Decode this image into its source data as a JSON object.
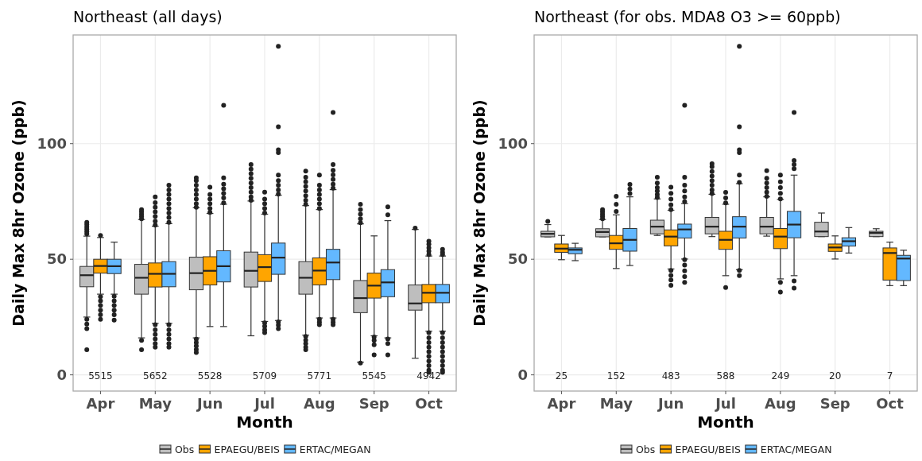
{
  "chart_data": [
    {
      "type": "box",
      "title": "Northeast (all days)",
      "xlabel": "Month",
      "ylabel": "Daily Max 8hr Ozone (ppb)",
      "categories": [
        "Apr",
        "May",
        "Jun",
        "Jul",
        "Aug",
        "Sep",
        "Oct"
      ],
      "ylim": [
        -7,
        147
      ],
      "yticks": [
        0,
        50,
        100
      ],
      "grid": true,
      "legend": "bottom",
      "annotations": [
        "5515",
        "5652",
        "5528",
        "5709",
        "5771",
        "5545",
        "4942"
      ],
      "series": [
        {
          "name": "Obs",
          "color": "#bebebe",
          "boxes": [
            {
              "low": 25,
              "q1": 38.1,
              "median": 43.1,
              "q3": 46.9,
              "high": 60,
              "outliers": [
                61,
                62,
                63,
                64,
                65,
                66,
                24,
                22,
                20,
                10.9
              ]
            },
            {
              "low": 16,
              "q1": 34.9,
              "median": 42,
              "q3": 47.8,
              "high": 67.2,
              "outliers": [
                67.5,
                68.5,
                69.5,
                70.5,
                71.5,
                14.9,
                10.9
              ]
            },
            {
              "low": 16,
              "q1": 36.8,
              "median": 44,
              "q3": 50.9,
              "high": 72.3,
              "outliers": [
                72.5,
                74,
                76,
                78,
                80,
                82,
                84,
                85.2,
                15.4,
                14,
                12.5,
                11,
                9.7
              ]
            },
            {
              "low": 16.9,
              "q1": 38,
              "median": 45,
              "q3": 53.1,
              "high": 75.2,
              "outliers": [
                75.5,
                77,
                79,
                81,
                83,
                85,
                87,
                89,
                91
              ]
            },
            {
              "low": 17.2,
              "q1": 34.9,
              "median": 42,
              "q3": 49,
              "high": 73.2,
              "outliers": [
                73.8,
                75.5,
                77.5,
                79.5,
                81.5,
                83.5,
                85.5,
                88.1,
                16.6,
                15,
                13.5,
                12,
                10.9
              ]
            },
            {
              "low": 5.5,
              "q1": 26.9,
              "median": 33.2,
              "q3": 40.8,
              "high": 65.3,
              "outliers": [
                65.8,
                67.5,
                69.5,
                71.5,
                73.8,
                5.1
              ]
            },
            {
              "low": 7.2,
              "q1": 28,
              "median": 30.9,
              "q3": 38.9,
              "high": 62.9,
              "outliers": [
                63.5
              ]
            }
          ]
        },
        {
          "name": "EPAEGU/BEIS",
          "color": "#ffa500",
          "boxes": [
            {
              "low": 34.9,
              "q1": 44,
              "median": 47.1,
              "q3": 50,
              "high": 59.4,
              "outliers": [
                60.3,
                33.8,
                32,
                30,
                28,
                26,
                24
              ]
            },
            {
              "low": 22.3,
              "q1": 38,
              "median": 43.7,
              "q3": 48.4,
              "high": 64.3,
              "outliers": [
                64.8,
                66.5,
                68.5,
                70.5,
                72.5,
                74.5,
                77,
                21.7,
                19.5,
                17.5,
                15.5,
                13.5,
                12
              ]
            },
            {
              "low": 20.9,
              "q1": 38.9,
              "median": 45,
              "q3": 51.1,
              "high": 69.8,
              "outliers": [
                70.3,
                72,
                74,
                76,
                78,
                81.2
              ]
            },
            {
              "low": 23.1,
              "q1": 40.4,
              "median": 46.6,
              "q3": 52,
              "high": 69.5,
              "outliers": [
                70,
                72,
                74,
                76,
                79,
                22.5,
                21,
                19.5,
                18.3
              ]
            },
            {
              "low": 24.6,
              "q1": 38.9,
              "median": 45.1,
              "q3": 50.6,
              "high": 71.5,
              "outliers": [
                72,
                74,
                76,
                78,
                80,
                82,
                86.4,
                24,
                22.8,
                21.7
              ]
            },
            {
              "low": 16.9,
              "q1": 33.2,
              "median": 38.6,
              "q3": 44,
              "high": 60.1,
              "outliers": [
                16.4,
                14.9,
                13,
                8.6
              ]
            },
            {
              "low": 18.9,
              "q1": 31.2,
              "median": 35.5,
              "q3": 39.1,
              "high": 51.4,
              "outliers": [
                52,
                53.5,
                55,
                56.5,
                57.8,
                18.3,
                16,
                14,
                12,
                10,
                8,
                6,
                4,
                2,
                1.1
              ]
            }
          ]
        },
        {
          "name": "ERTAC/MEGAN",
          "color": "#63b8ff",
          "boxes": [
            {
              "low": 34.9,
              "q1": 43.8,
              "median": 47,
              "q3": 50,
              "high": 57.4,
              "outliers": [
                34,
                32,
                30,
                28,
                26,
                23.7
              ]
            },
            {
              "low": 22.3,
              "q1": 38.1,
              "median": 43.7,
              "q3": 49,
              "high": 65.4,
              "outliers": [
                66,
                68,
                70,
                72,
                74,
                76,
                78,
                80,
                82,
                21.7,
                19.5,
                17.5,
                15.5,
                13.5,
                12
              ]
            },
            {
              "low": 20.9,
              "q1": 40.2,
              "median": 47,
              "q3": 53.7,
              "high": 73.8,
              "outliers": [
                74.4,
                76.5,
                78.5,
                80.5,
                82.5,
                85.2,
                116.6
              ]
            },
            {
              "low": 23.5,
              "q1": 43.5,
              "median": 50.7,
              "q3": 57,
              "high": 77.7,
              "outliers": [
                78.2,
                80,
                82,
                84,
                86.4,
                96.1,
                97.3,
                107.3,
                142.1,
                22.9,
                21.5,
                20
              ]
            },
            {
              "low": 24.6,
              "q1": 41.2,
              "median": 48.6,
              "q3": 54.3,
              "high": 80.1,
              "outliers": [
                80.7,
                82.5,
                84.5,
                86.5,
                88.5,
                91,
                113.5,
                24,
                22.8,
                21.7
              ]
            },
            {
              "low": 16,
              "q1": 33.8,
              "median": 40,
              "q3": 45.5,
              "high": 66.7,
              "outliers": [
                69.2,
                72.7,
                15.5,
                13.5,
                8.6
              ]
            },
            {
              "low": 18.9,
              "q1": 31.2,
              "median": 35.5,
              "q3": 39.1,
              "high": 51.4,
              "outliers": [
                52,
                53,
                54.3,
                18.3,
                16,
                14,
                12,
                10,
                8,
                6,
                4,
                2,
                1.1
              ]
            }
          ]
        }
      ]
    },
    {
      "type": "box",
      "title": "Northeast (for obs. MDA8 O3 >= 60ppb)",
      "xlabel": "Month",
      "ylabel": "Daily Max 8hr Ozone (ppb)",
      "categories": [
        "Apr",
        "May",
        "Jun",
        "Jul",
        "Aug",
        "Sep",
        "Oct"
      ],
      "ylim": [
        -7,
        147
      ],
      "yticks": [
        0,
        50,
        100
      ],
      "grid": true,
      "legend": "bottom",
      "annotations": [
        "25",
        "152",
        "483",
        "588",
        "249",
        "20",
        "7"
      ],
      "series": [
        {
          "name": "Obs",
          "color": "#bebebe",
          "boxes": [
            {
              "low": 59.7,
              "q1": 59.7,
              "median": 61,
              "q3": 62.1,
              "high": 65,
              "outliers": [
                66.4
              ]
            },
            {
              "low": 59.7,
              "q1": 59.7,
              "median": 61.8,
              "q3": 63.2,
              "high": 67.2,
              "outliers": [
                67.5,
                68.5,
                69.5,
                70.5,
                71.5
              ]
            },
            {
              "low": 60.3,
              "q1": 61,
              "median": 64.1,
              "q3": 66.9,
              "high": 76.1,
              "outliers": [
                76.7,
                78,
                79.5,
                81,
                83,
                85.5
              ]
            },
            {
              "low": 59.8,
              "q1": 61,
              "median": 64.1,
              "q3": 68.1,
              "high": 78.1,
              "outliers": [
                78.4,
                80,
                82,
                84,
                86,
                88,
                90,
                91.3
              ]
            },
            {
              "low": 60,
              "q1": 61,
              "median": 64.1,
              "q3": 68.1,
              "high": 77,
              "outliers": [
                77.2,
                79,
                81,
                83,
                85,
                88.3
              ]
            },
            {
              "low": 59.8,
              "q1": 59.8,
              "median": 62,
              "q3": 66,
              "high": 70
            },
            {
              "low": 59.8,
              "q1": 59.8,
              "median": 61.4,
              "q3": 62.1,
              "high": 63.2
            }
          ]
        },
        {
          "name": "EPAEGU/BEIS",
          "color": "#ffa500",
          "boxes": [
            {
              "low": 49.8,
              "q1": 53,
              "median": 54.6,
              "q3": 56.6,
              "high": 60.3
            },
            {
              "low": 46,
              "q1": 54.3,
              "median": 56.9,
              "q3": 60.3,
              "high": 69.2,
              "outliers": [
                70.7,
                73.8,
                77.2
              ]
            },
            {
              "low": 45.8,
              "q1": 55.8,
              "median": 59.8,
              "q3": 62.7,
              "high": 71.2,
              "outliers": [
                71.5,
                73.5,
                76,
                78.5,
                81.2,
                45.2,
                43,
                41,
                38.7
              ]
            },
            {
              "low": 42.9,
              "q1": 54.3,
              "median": 58.4,
              "q3": 62.1,
              "high": 73.8,
              "outliers": [
                74.4,
                76.5,
                78.9,
                37.8
              ]
            },
            {
              "low": 41.5,
              "q1": 54.6,
              "median": 59.8,
              "q3": 63.3,
              "high": 75.9,
              "outliers": [
                76.1,
                78.5,
                81,
                83.5,
                86.4,
                40,
                35.8
              ]
            },
            {
              "low": 50.1,
              "q1": 53.4,
              "median": 55.1,
              "q3": 56.6,
              "high": 60.1
            },
            {
              "low": 38.6,
              "q1": 41,
              "median": 52.7,
              "q3": 54.9,
              "high": 57.4
            }
          ]
        },
        {
          "name": "ERTAC/MEGAN",
          "color": "#63b8ff",
          "boxes": [
            {
              "low": 49.4,
              "q1": 52.4,
              "median": 54.1,
              "q3": 54.9,
              "high": 56.9
            },
            {
              "low": 47.3,
              "q1": 53.5,
              "median": 58.4,
              "q3": 63.3,
              "high": 77,
              "outliers": [
                78.4,
                80.4,
                82.4
              ]
            },
            {
              "low": 50.1,
              "q1": 59.2,
              "median": 62.9,
              "q3": 65.2,
              "high": 74.1,
              "outliers": [
                74.9,
                77,
                79.5,
                82,
                85.5,
                116.6,
                49.8,
                47.5,
                45,
                42.5,
                40
              ]
            },
            {
              "low": 45.5,
              "q1": 59.2,
              "median": 64.1,
              "q3": 68.4,
              "high": 82.7,
              "outliers": [
                83.2,
                86.4,
                96.1,
                97.3,
                107.3,
                142.1,
                45.2,
                42.9
              ]
            },
            {
              "low": 42.9,
              "q1": 59.3,
              "median": 65,
              "q3": 70.7,
              "high": 86.4,
              "outliers": [
                89.2,
                91,
                92.7,
                113.5,
                40.6,
                37.5
              ]
            },
            {
              "low": 52.7,
              "q1": 55.7,
              "median": 57.8,
              "q3": 59.3,
              "high": 63.7
            },
            {
              "low": 38.6,
              "q1": 40.8,
              "median": 50.3,
              "q3": 51.7,
              "high": 53.9
            }
          ]
        }
      ]
    }
  ]
}
